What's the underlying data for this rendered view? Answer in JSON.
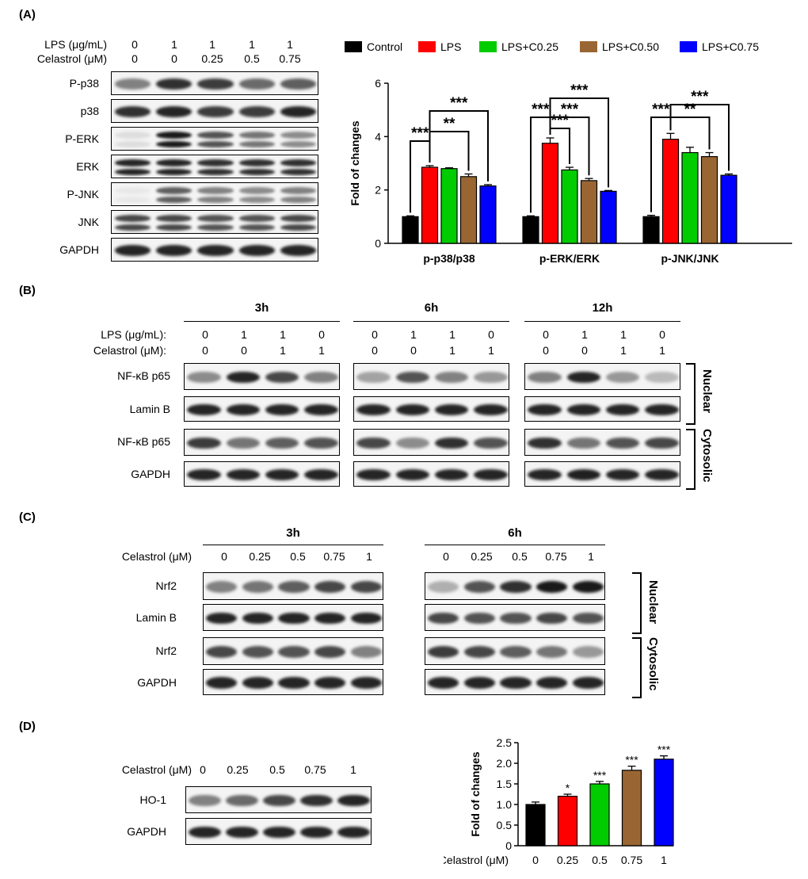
{
  "panels": {
    "a": "(A)",
    "b": "(B)",
    "c": "(C)",
    "d": "(D)"
  },
  "panelA": {
    "row1_label": "LPS (μg/mL)",
    "row2_label": "Celastrol (μM)",
    "lps_values": [
      "0",
      "1",
      "1",
      "1",
      "1"
    ],
    "cel_values": [
      "0",
      "0",
      "0.25",
      "0.5",
      "0.75"
    ],
    "blots": [
      {
        "label": "P-p38",
        "intensity": [
          0.55,
          0.9,
          0.85,
          0.65,
          0.7
        ],
        "double": false
      },
      {
        "label": "p38",
        "intensity": [
          0.9,
          0.95,
          0.85,
          0.85,
          0.95
        ],
        "double": false
      },
      {
        "label": "P-ERK",
        "intensity": [
          0.15,
          1.0,
          0.75,
          0.6,
          0.5
        ],
        "double": true
      },
      {
        "label": "ERK",
        "intensity": [
          0.95,
          0.95,
          0.9,
          0.9,
          0.9
        ],
        "double": true
      },
      {
        "label": "P-JNK",
        "intensity": [
          0.1,
          0.7,
          0.55,
          0.5,
          0.55
        ],
        "double": true
      },
      {
        "label": "JNK",
        "intensity": [
          0.8,
          0.8,
          0.75,
          0.75,
          0.8
        ],
        "double": true
      },
      {
        "label": "GAPDH",
        "intensity": [
          0.95,
          0.95,
          0.95,
          0.95,
          0.95
        ],
        "double": false
      }
    ]
  },
  "chartA": {
    "type": "bar",
    "legend": [
      "Control",
      "LPS",
      "LPS+C0.25",
      "LPS+C0.50",
      "LPS+C0.75"
    ],
    "colors": [
      "#000000",
      "#ff0000",
      "#00cc00",
      "#996633",
      "#0000ff"
    ],
    "ylabel": "Fold of changes",
    "ylim": [
      0,
      6
    ],
    "yticks": [
      "0",
      "2",
      "4",
      "6"
    ],
    "categories": [
      "p-p38/p38",
      "p-ERK/ERK",
      "p-JNK/JNK"
    ],
    "series": [
      {
        "name": "Control",
        "values": [
          1.0,
          1.0,
          1.0
        ],
        "err": [
          0.03,
          0.03,
          0.05
        ]
      },
      {
        "name": "LPS",
        "values": [
          2.85,
          3.75,
          3.9
        ],
        "err": [
          0.06,
          0.2,
          0.22
        ]
      },
      {
        "name": "LPS+C0.25",
        "values": [
          2.8,
          2.75,
          3.4
        ],
        "err": [
          0.03,
          0.1,
          0.2
        ]
      },
      {
        "name": "LPS+C0.50",
        "values": [
          2.5,
          2.35,
          3.25
        ],
        "err": [
          0.1,
          0.08,
          0.15
        ]
      },
      {
        "name": "LPS+C0.75",
        "values": [
          2.15,
          1.95,
          2.55
        ],
        "err": [
          0.05,
          0.03,
          0.05
        ]
      }
    ],
    "stars": [
      "***",
      "***",
      "**",
      "***",
      "***",
      "***",
      "***",
      "***",
      "**"
    ]
  },
  "panelB": {
    "times": [
      "3h",
      "6h",
      "12h"
    ],
    "row1_label": "LPS (μg/mL):",
    "row2_label": "Celastrol (μM):",
    "lps_values": [
      "0",
      "1",
      "1",
      "0"
    ],
    "cel_values": [
      "0",
      "0",
      "1",
      "1"
    ],
    "rows": [
      "NF-κB p65",
      "Lamin B",
      "NF-κB p65",
      "GAPDH"
    ],
    "nuclear": "Nuclear",
    "cytosolic": "Cytosolic"
  },
  "panelC": {
    "times": [
      "3h",
      "6h"
    ],
    "row_label": "Celastrol (μM)",
    "values": [
      "0",
      "0.25",
      "0.5",
      "0.75",
      "1"
    ],
    "rows": [
      "Nrf2",
      "Lamin B",
      "Nrf2",
      "GAPDH"
    ],
    "nuclear": "Nuclear",
    "cytosolic": "Cytosolic"
  },
  "panelD": {
    "row_label": "Celastrol (μM)",
    "values": [
      "0",
      "0.25",
      "0.5",
      "0.75",
      "1"
    ],
    "rows": [
      "HO-1",
      "GAPDH"
    ]
  },
  "chart_data": [
    {
      "type": "bar",
      "title": "",
      "ylabel": "Fold of changes",
      "categories": [
        "p-p38/p38",
        "p-ERK/ERK",
        "p-JNK/JNK"
      ],
      "series": [
        {
          "name": "Control",
          "values": [
            1.0,
            1.0,
            1.0
          ]
        },
        {
          "name": "LPS",
          "values": [
            2.85,
            3.75,
            3.9
          ]
        },
        {
          "name": "LPS+C0.25",
          "values": [
            2.8,
            2.75,
            3.4
          ]
        },
        {
          "name": "LPS+C0.50",
          "values": [
            2.5,
            2.35,
            3.25
          ]
        },
        {
          "name": "LPS+C0.75",
          "values": [
            2.15,
            1.95,
            2.55
          ]
        }
      ],
      "ylim": [
        0,
        6
      ]
    },
    {
      "type": "bar",
      "title": "",
      "xlabel": "Celastrol (μM)",
      "ylabel": "Fold of changes",
      "categories": [
        "0",
        "0.25",
        "0.5",
        "0.75",
        "1"
      ],
      "values": [
        1.0,
        1.2,
        1.5,
        1.83,
        2.1
      ],
      "err": [
        0.06,
        0.05,
        0.06,
        0.1,
        0.08
      ],
      "colors": [
        "#000000",
        "#ff0000",
        "#00cc00",
        "#996633",
        "#0000ff"
      ],
      "stars": [
        "",
        "*",
        "***",
        "***",
        "***"
      ],
      "ylim": [
        0,
        2.5
      ],
      "yticks": [
        "0",
        "0.5",
        "1.0",
        "1.5",
        "2.0",
        "2.5"
      ]
    }
  ]
}
